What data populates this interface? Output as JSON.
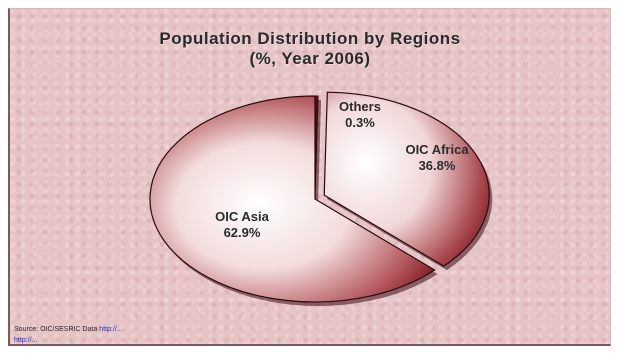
{
  "chart_data": {
    "type": "pie",
    "title": "Population Distribution by Regions",
    "subtitle": "(%, Year 2006)",
    "slices": [
      {
        "label": "Others",
        "value": 0.3,
        "value_label": "0.3%"
      },
      {
        "label": "OIC Africa",
        "value": 36.8,
        "value_label": "36.8%"
      },
      {
        "label": "OIC Asia",
        "value": 62.9,
        "value_label": "62.9%"
      }
    ],
    "exploded": "OIC Africa",
    "style": "3d-shaded"
  },
  "source": {
    "text": "Source: OIC/SESRIC Data",
    "link": "http://...",
    "url_line": "http://..."
  },
  "colors": {
    "background": "#e6c3c5",
    "slice_dark": "#8a1a22",
    "slice_light": "#ffffff"
  }
}
